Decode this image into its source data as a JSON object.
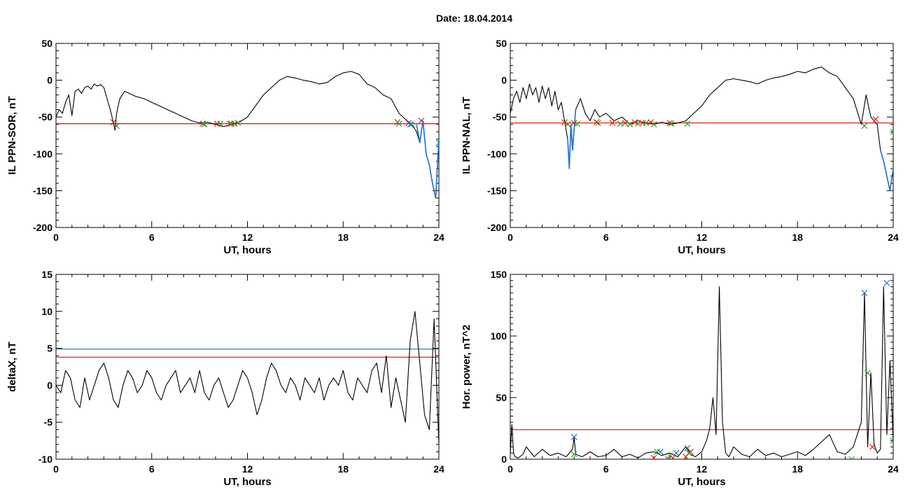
{
  "figure": {
    "title": "Date:  18.04.2014"
  },
  "chart_data": [
    {
      "type": "line",
      "xlabel": "UT, hours",
      "ylabel": "IL PPN-SOR, nT",
      "xlim": [
        0,
        24
      ],
      "ylim": [
        -200,
        50
      ],
      "xticks": [
        0,
        6,
        12,
        18,
        24
      ],
      "xminor": 1,
      "yticks": [
        50,
        0,
        -50,
        -100,
        -150,
        -200
      ],
      "yminor": 10,
      "hlines": [
        {
          "y": -59,
          "color": "#e8201a"
        }
      ],
      "series": [
        {
          "color": "#000000",
          "x": [
            0,
            0.2,
            0.4,
            0.6,
            0.8,
            1.0,
            1.2,
            1.4,
            1.6,
            1.8,
            2.0,
            2.2,
            2.4,
            2.6,
            2.8,
            3.0,
            3.2,
            3.4,
            3.6,
            3.7,
            3.8,
            4.0,
            4.3,
            4.6,
            5.0,
            5.5,
            6.0,
            6.5,
            7.0,
            7.5,
            8.0,
            8.5,
            9.0,
            9.5,
            10.0,
            10.5,
            11.0,
            11.5,
            12.0,
            12.5,
            13.0,
            13.5,
            14.0,
            14.5,
            15.0,
            15.5,
            16.0,
            16.5,
            17.0,
            17.5,
            18.0,
            18.5,
            19.0,
            19.5,
            20.0,
            20.5,
            21.0,
            21.5,
            22.0,
            22.3,
            22.6,
            22.8,
            23.0,
            23.2,
            23.4,
            23.6,
            23.8,
            24.0
          ],
          "y": [
            -50,
            -40,
            -45,
            -30,
            -20,
            -48,
            -15,
            -12,
            -18,
            -10,
            -8,
            -12,
            -5,
            -8,
            -6,
            -10,
            -25,
            -40,
            -58,
            -68,
            -45,
            -25,
            -15,
            -18,
            -22,
            -25,
            -30,
            -35,
            -40,
            -45,
            -50,
            -55,
            -58,
            -57,
            -60,
            -63,
            -60,
            -57,
            -50,
            -35,
            -20,
            -10,
            0,
            5,
            3,
            0,
            -2,
            -5,
            -3,
            5,
            10,
            12,
            8,
            -5,
            -10,
            -20,
            -25,
            -45,
            -55,
            -60,
            -70,
            -85,
            -55,
            -100,
            -115,
            -140,
            -160,
            -80
          ]
        },
        {
          "color": "#1f6fd0",
          "x": [
            22.6,
            22.8,
            23.0,
            23.2,
            23.4,
            23.6,
            23.8,
            24.0
          ],
          "y": [
            -60,
            -85,
            -55,
            -100,
            -115,
            -140,
            -160,
            -80
          ]
        }
      ],
      "markers": [
        {
          "symbol": "x",
          "color": "#e8201a",
          "x": [
            3.6,
            9.2,
            10.1,
            10.9,
            11.2,
            21.4,
            22.1,
            22.9
          ],
          "y": [
            -57,
            -59,
            -59,
            -59,
            -59,
            -57,
            -58,
            -55
          ]
        },
        {
          "symbol": "x",
          "color": "#2aa02a",
          "x": [
            3.8,
            9.3,
            10.3,
            11.0,
            11.4,
            21.5,
            22.3,
            24.0
          ],
          "y": [
            -62,
            -60,
            -59,
            -59,
            -58,
            -59,
            -60,
            -85
          ]
        },
        {
          "symbol": "x",
          "color": "#1f6fd0",
          "x": [
            22.2
          ],
          "y": [
            -60
          ]
        }
      ]
    },
    {
      "type": "line",
      "xlabel": "UT, hours",
      "ylabel": "IL PPN-NAL, nT",
      "xlim": [
        0,
        24
      ],
      "ylim": [
        -200,
        50
      ],
      "xticks": [
        0,
        6,
        12,
        18,
        24
      ],
      "xminor": 1,
      "yticks": [
        50,
        0,
        -50,
        -100,
        -150,
        -200
      ],
      "yminor": 10,
      "hlines": [
        {
          "y": -58,
          "color": "#e8201a"
        }
      ],
      "series": [
        {
          "color": "#000000",
          "x": [
            0,
            0.2,
            0.4,
            0.6,
            0.8,
            1.0,
            1.2,
            1.4,
            1.6,
            1.8,
            2.0,
            2.2,
            2.4,
            2.6,
            2.8,
            3.0,
            3.2,
            3.4,
            3.6,
            3.7,
            3.8,
            3.9,
            4.1,
            4.4,
            4.7,
            5.0,
            5.3,
            5.6,
            6.0,
            6.5,
            7.0,
            7.5,
            8.0,
            8.5,
            9.0,
            9.5,
            10.0,
            10.5,
            11.0,
            11.5,
            12.0,
            12.5,
            13.0,
            13.5,
            14.0,
            14.5,
            15.0,
            15.5,
            16.0,
            16.5,
            17.0,
            17.5,
            18.0,
            18.5,
            19.0,
            19.5,
            20.0,
            20.5,
            21.0,
            21.5,
            22.0,
            22.3,
            22.6,
            22.8,
            23.0,
            23.2,
            23.4,
            23.6,
            23.8,
            24.0
          ],
          "y": [
            -45,
            -25,
            -15,
            -30,
            -10,
            -25,
            -5,
            -20,
            -10,
            -30,
            -8,
            -25,
            -10,
            -35,
            -15,
            -40,
            -30,
            -55,
            -80,
            -120,
            -60,
            -95,
            -40,
            -25,
            -45,
            -55,
            -40,
            -50,
            -45,
            -55,
            -50,
            -60,
            -55,
            -58,
            -60,
            -57,
            -60,
            -58,
            -55,
            -45,
            -35,
            -20,
            -10,
            0,
            2,
            0,
            -2,
            -5,
            0,
            3,
            5,
            8,
            12,
            10,
            15,
            18,
            10,
            5,
            -10,
            -25,
            -60,
            -20,
            -50,
            -55,
            -60,
            -95,
            -110,
            -130,
            -150,
            -120
          ]
        },
        {
          "color": "#1f6fd0",
          "x": [
            3.6,
            3.7,
            3.8,
            3.9,
            4.1
          ],
          "y": [
            -80,
            -120,
            -60,
            -95,
            -40
          ]
        },
        {
          "color": "#1f6fd0",
          "x": [
            23.2,
            23.4,
            23.6,
            23.8,
            24.0
          ],
          "y": [
            -95,
            -110,
            -130,
            -150,
            -120
          ]
        }
      ],
      "markers": [
        {
          "symbol": "x",
          "color": "#e8201a",
          "x": [
            3.4,
            4.0,
            5.4,
            6.4,
            7.2,
            7.8,
            8.3,
            8.8,
            10.0,
            22.9
          ],
          "y": [
            -57,
            -58,
            -57,
            -58,
            -58,
            -57,
            -58,
            -57,
            -58,
            -53
          ]
        },
        {
          "symbol": "x",
          "color": "#2aa02a",
          "x": [
            3.6,
            4.2,
            5.5,
            6.9,
            7.5,
            8.0,
            8.5,
            9.0,
            10.1,
            11.1,
            22.2,
            24.0
          ],
          "y": [
            -60,
            -59,
            -58,
            -59,
            -60,
            -59,
            -58,
            -60,
            -59,
            -59,
            -62,
            -70
          ]
        }
      ]
    },
    {
      "type": "line",
      "xlabel": "UT, hours",
      "ylabel": "deltaX, nT",
      "xlim": [
        0,
        24
      ],
      "ylim": [
        -10,
        15
      ],
      "xticks": [
        0,
        6,
        12,
        18,
        24
      ],
      "xminor": 1,
      "yticks": [
        15,
        10,
        5,
        0,
        -5,
        -10
      ],
      "yminor": 1,
      "hlines": [
        {
          "y": 4.9,
          "color": "#2b7fb0"
        },
        {
          "y": 3.8,
          "color": "#e8201a"
        }
      ],
      "series": [
        {
          "color": "#000000",
          "x": [
            0,
            0.3,
            0.6,
            0.9,
            1.2,
            1.5,
            1.8,
            2.1,
            2.4,
            2.7,
            3.0,
            3.3,
            3.6,
            3.9,
            4.2,
            4.5,
            4.8,
            5.1,
            5.4,
            5.7,
            6.0,
            6.3,
            6.6,
            6.9,
            7.2,
            7.5,
            7.8,
            8.1,
            8.4,
            8.7,
            9.0,
            9.3,
            9.6,
            9.9,
            10.2,
            10.5,
            10.8,
            11.1,
            11.4,
            11.7,
            12.0,
            12.3,
            12.6,
            12.9,
            13.2,
            13.5,
            13.8,
            14.1,
            14.4,
            14.7,
            15.0,
            15.3,
            15.6,
            15.9,
            16.2,
            16.5,
            16.8,
            17.1,
            17.4,
            17.7,
            18.0,
            18.3,
            18.6,
            18.9,
            19.2,
            19.5,
            19.8,
            20.1,
            20.4,
            20.7,
            21.0,
            21.3,
            21.6,
            21.9,
            22.2,
            22.5,
            22.8,
            23.1,
            23.4,
            23.7,
            24.0
          ],
          "y": [
            0,
            -1,
            2,
            1,
            -2,
            -3,
            1,
            -2,
            0,
            2,
            3,
            1,
            -2,
            -3,
            0,
            2,
            1,
            -1,
            0,
            2,
            1,
            -1,
            -2,
            0,
            1,
            2,
            -1,
            0,
            1,
            -1,
            2,
            -1,
            -2,
            0,
            1,
            -1,
            -3,
            -2,
            0,
            2,
            1,
            -1,
            -4,
            -2,
            1,
            3,
            2,
            0,
            -1,
            1,
            0,
            -2,
            1,
            0,
            -1,
            1,
            -2,
            0,
            1,
            0,
            2,
            -1,
            -2,
            1,
            0,
            -1,
            2,
            3,
            -1,
            4,
            -3,
            1,
            -2,
            -5,
            6,
            10,
            3,
            -4,
            -6,
            9,
            -8
          ]
        }
      ],
      "markers": []
    },
    {
      "type": "line",
      "xlabel": "UT, hours",
      "ylabel": "Hor. power, nT^2",
      "xlim": [
        0,
        24
      ],
      "ylim": [
        0,
        150
      ],
      "xticks": [
        0,
        6,
        12,
        18,
        24
      ],
      "xminor": 1,
      "yticks": [
        150,
        100,
        50,
        0
      ],
      "yminor": 5,
      "hlines": [
        {
          "y": 24,
          "color": "#e8201a"
        }
      ],
      "series": [
        {
          "color": "#000000",
          "x": [
            0,
            0.1,
            0.2,
            0.3,
            0.5,
            0.8,
            1.0,
            1.5,
            2.0,
            2.5,
            3.0,
            3.5,
            3.9,
            4.0,
            4.1,
            4.5,
            5.0,
            5.5,
            6.0,
            6.5,
            7.0,
            7.5,
            8.0,
            8.5,
            9.0,
            9.5,
            10.0,
            10.5,
            11.0,
            11.3,
            11.6,
            12.0,
            12.3,
            12.5,
            12.7,
            12.9,
            13.1,
            13.3,
            13.5,
            13.7,
            14.0,
            14.5,
            15.0,
            15.5,
            16.0,
            16.5,
            17.0,
            17.5,
            18.0,
            18.5,
            19.0,
            19.5,
            20.0,
            20.5,
            21.0,
            21.5,
            22.0,
            22.2,
            22.4,
            22.6,
            22.8,
            23.0,
            23.2,
            23.4,
            23.6,
            23.8,
            24.0
          ],
          "y": [
            5,
            28,
            5,
            2,
            1,
            4,
            10,
            2,
            8,
            3,
            5,
            2,
            8,
            18,
            4,
            2,
            6,
            2,
            3,
            8,
            2,
            4,
            1,
            5,
            6,
            3,
            5,
            2,
            10,
            4,
            2,
            6,
            15,
            25,
            50,
            20,
            140,
            30,
            5,
            2,
            10,
            4,
            2,
            8,
            3,
            5,
            2,
            4,
            6,
            3,
            8,
            14,
            20,
            6,
            4,
            10,
            30,
            135,
            10,
            70,
            12,
            5,
            8,
            140,
            20,
            80,
            15
          ]
        }
      ],
      "markers": [
        {
          "symbol": "x",
          "color": "#1f6fd0",
          "x": [
            4.0,
            9.4,
            10.4,
            11.1,
            22.2,
            23.6
          ],
          "y": [
            18,
            6,
            5,
            9,
            135,
            143
          ]
        },
        {
          "symbol": "x",
          "color": "#e8201a",
          "x": [
            9.0,
            9.9,
            10.2,
            11.0,
            11.3,
            22.7
          ],
          "y": [
            1,
            0,
            1,
            2,
            6,
            10
          ]
        },
        {
          "symbol": "x",
          "color": "#2aa02a",
          "x": [
            4.0,
            9.2,
            10.0,
            11.2,
            21.4,
            22.4,
            24.0
          ],
          "y": [
            4,
            6,
            3,
            5,
            0,
            70,
            15
          ]
        }
      ]
    }
  ]
}
